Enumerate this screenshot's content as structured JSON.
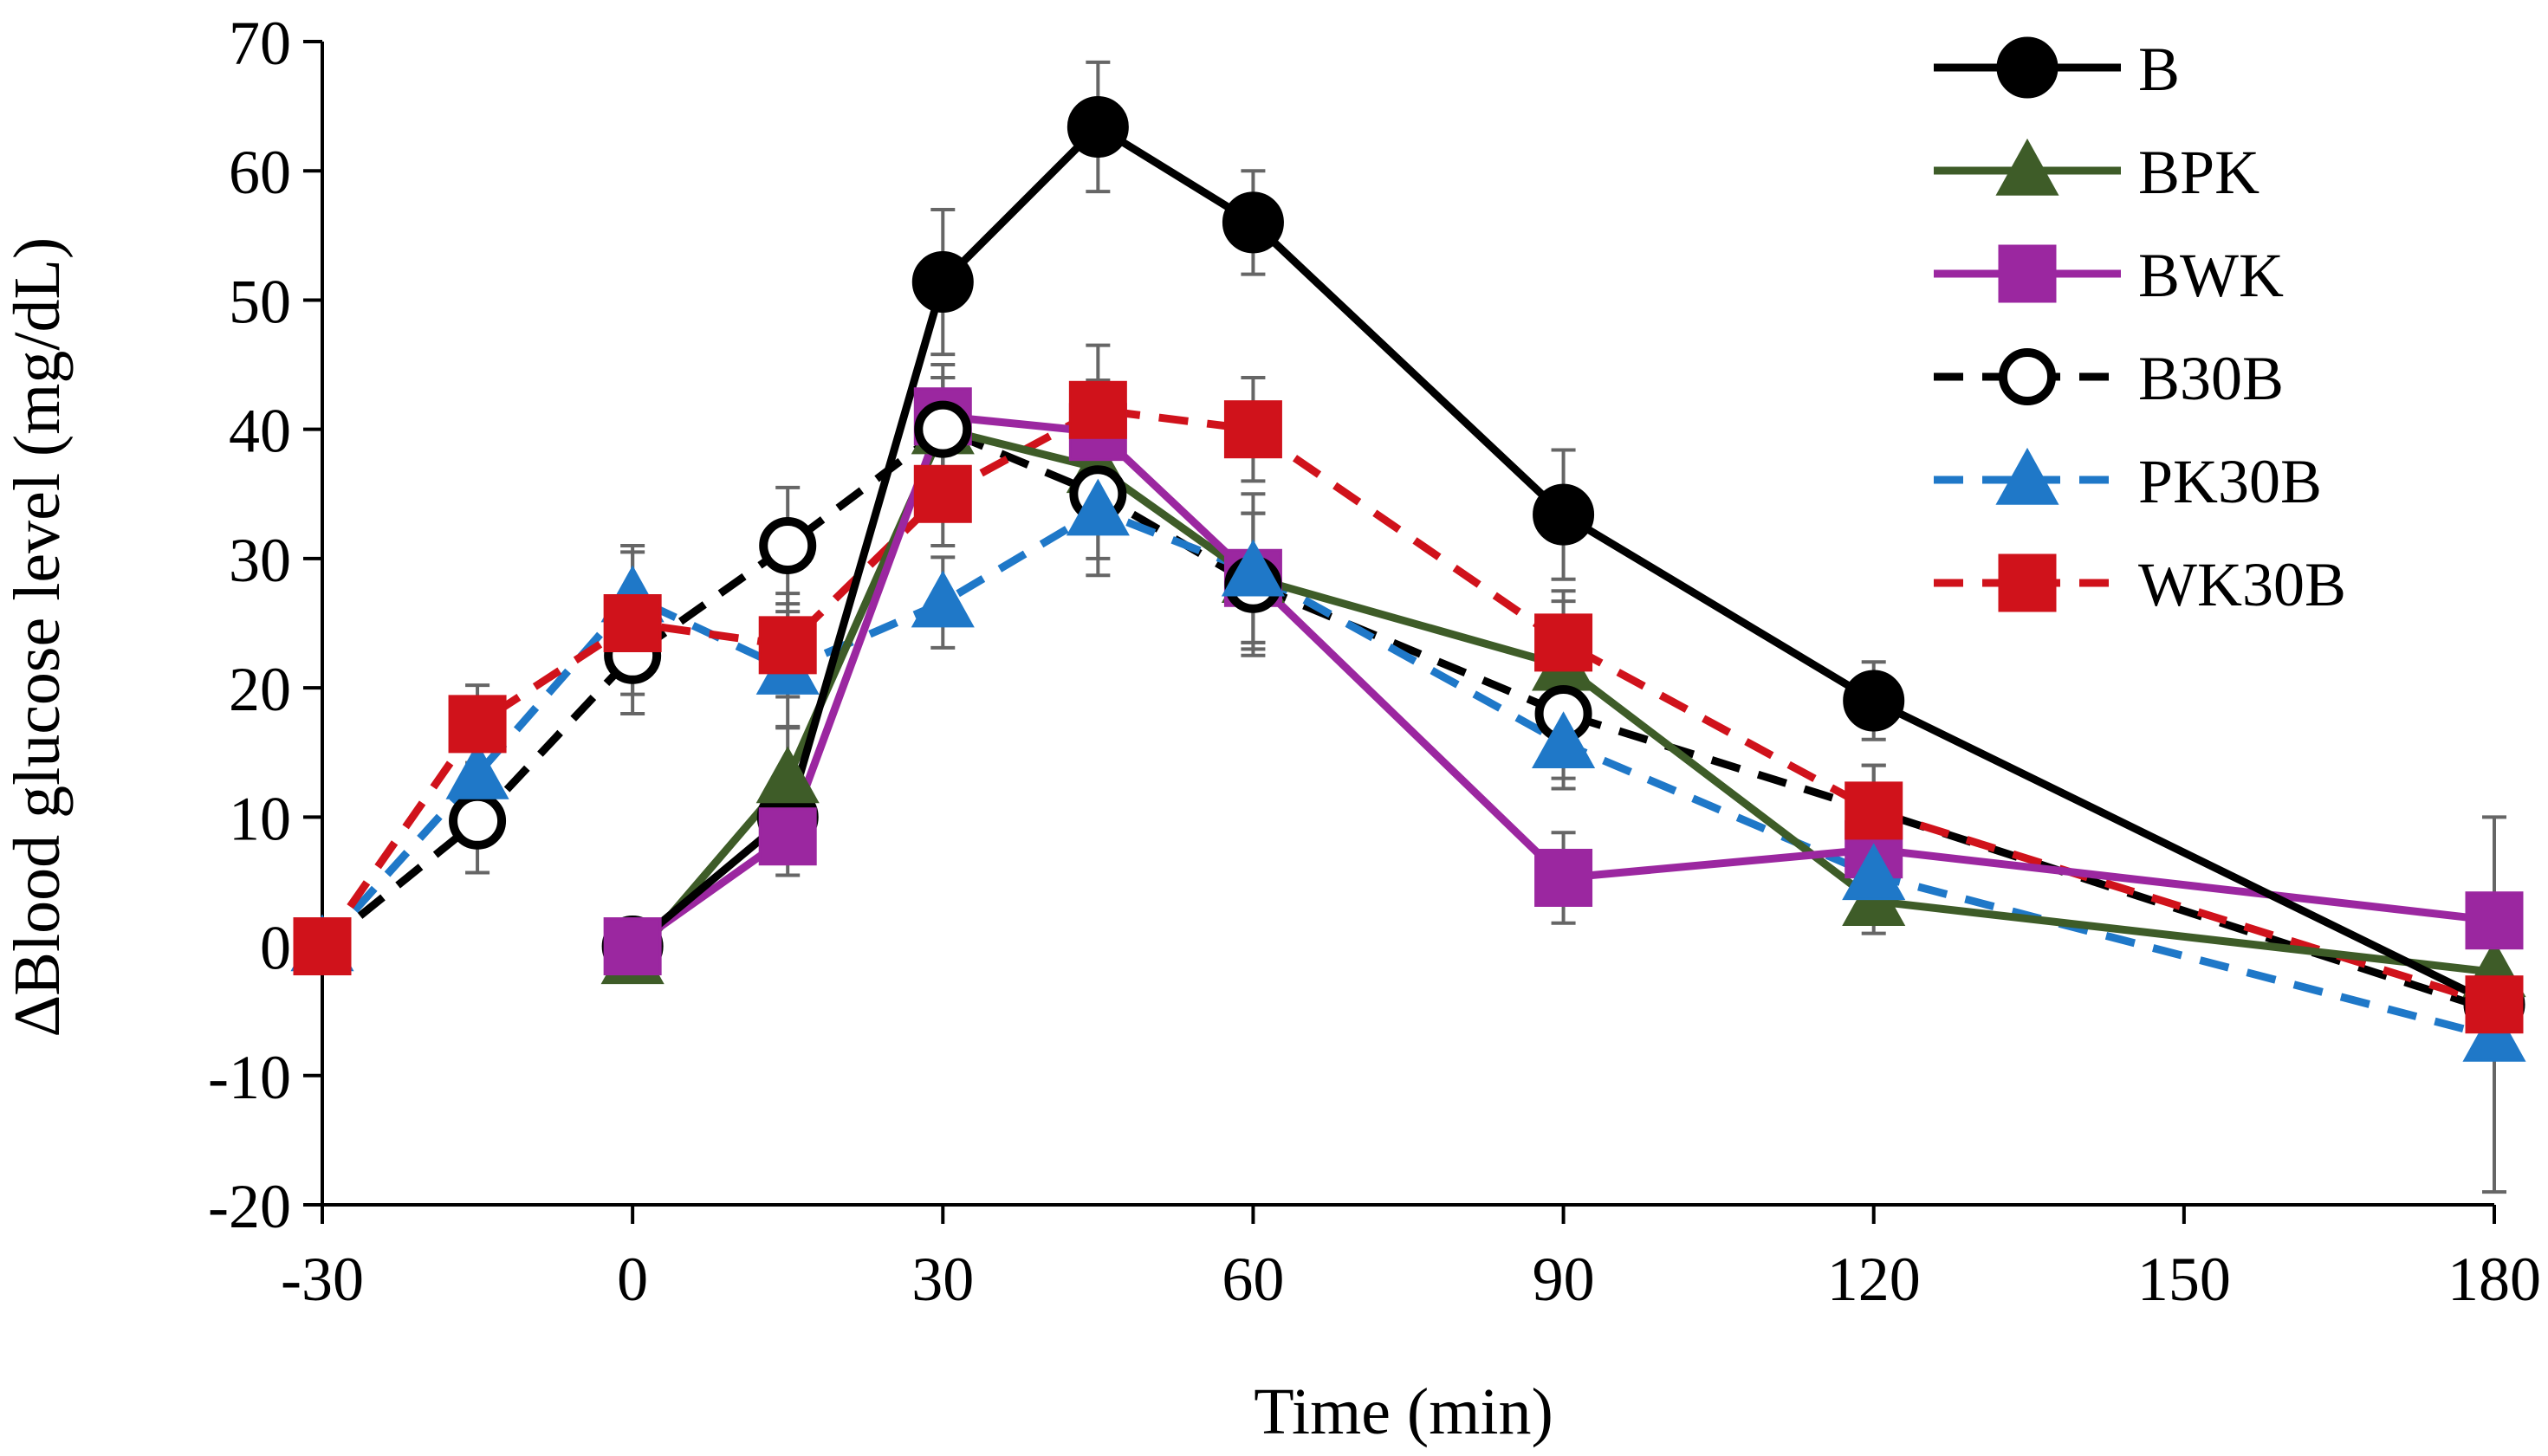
{
  "chart_data": {
    "type": "line",
    "title": "",
    "xlabel": "Time (min)",
    "ylabel": "∆Blood glucose level (mg/dL)",
    "xlim": [
      -30,
      180
    ],
    "ylim": [
      -20,
      70
    ],
    "x_ticks": [
      "-30",
      "0",
      "30",
      "60",
      "90",
      "120",
      "150",
      "180"
    ],
    "y_ticks": [
      "-20",
      "-10",
      "0",
      "10",
      "20",
      "30",
      "40",
      "50",
      "60",
      "70"
    ],
    "legend_position": "top-right",
    "series": [
      {
        "name": "B",
        "color": "#000000",
        "dash": "solid",
        "marker": "circle-filled",
        "x": [
          0,
          15,
          30,
          45,
          60,
          90,
          120,
          180
        ],
        "values": [
          0,
          10,
          51.4,
          63.4,
          56,
          33.4,
          19,
          -4.5
        ],
        "errors": [
          0,
          3,
          5.6,
          5,
          4,
          5,
          3,
          2
        ]
      },
      {
        "name": "BPK",
        "color": "#3e5c28",
        "dash": "solid",
        "marker": "triangle",
        "x": [
          0,
          15,
          30,
          45,
          60,
          90,
          120,
          180
        ],
        "values": [
          -1,
          13,
          40,
          37,
          28.5,
          21.7,
          3.5,
          -2
        ],
        "errors": [
          0,
          4,
          4,
          4,
          5,
          5,
          2.5,
          2
        ]
      },
      {
        "name": "BWK",
        "color": "#9b27a0",
        "dash": "solid",
        "marker": "square",
        "x": [
          0,
          15,
          30,
          45,
          60,
          90,
          120,
          180
        ],
        "values": [
          0,
          8.5,
          41,
          39.8,
          28.5,
          5.3,
          7.5,
          2
        ],
        "errors": [
          0,
          3,
          4,
          4,
          5,
          3.5,
          2,
          2
        ]
      },
      {
        "name": "B30B",
        "color": "#000000",
        "dash": "dashed",
        "marker": "circle-open",
        "x": [
          -30,
          -15,
          0,
          15,
          30,
          45,
          60,
          90,
          120,
          180
        ],
        "values": [
          0,
          9.7,
          22.5,
          31,
          40,
          35,
          28,
          18,
          10.5,
          -5
        ],
        "errors": [
          0,
          4,
          4.5,
          4.5,
          4,
          5,
          5.5,
          5,
          3.5,
          1.5
        ],
        "marker_indices": [
          1,
          2,
          3,
          4,
          5,
          6,
          7
        ]
      },
      {
        "name": "PK30B",
        "color": "#1f78c8",
        "dash": "dashed",
        "marker": "triangle",
        "x": [
          -30,
          -15,
          0,
          15,
          30,
          45,
          60,
          90,
          120,
          180
        ],
        "values": [
          0,
          13.3,
          27,
          21.4,
          26.6,
          33.7,
          29,
          15.7,
          5.5,
          -7
        ],
        "errors": [
          0,
          3.5,
          4,
          4.5,
          3.5,
          5,
          6,
          3.5,
          3,
          1.5
        ]
      },
      {
        "name": "WK30B",
        "color": "#d0121b",
        "dash": "dashed",
        "marker": "square",
        "x": [
          -30,
          -15,
          0,
          15,
          30,
          45,
          60,
          90,
          120,
          180
        ],
        "values": [
          0,
          17.2,
          25,
          23.3,
          35,
          41.5,
          40,
          23.5,
          10.5,
          -4.5
        ],
        "errors": [
          0,
          3,
          5.5,
          4,
          4,
          5,
          4,
          4,
          3.5,
          14.5
        ]
      }
    ]
  }
}
